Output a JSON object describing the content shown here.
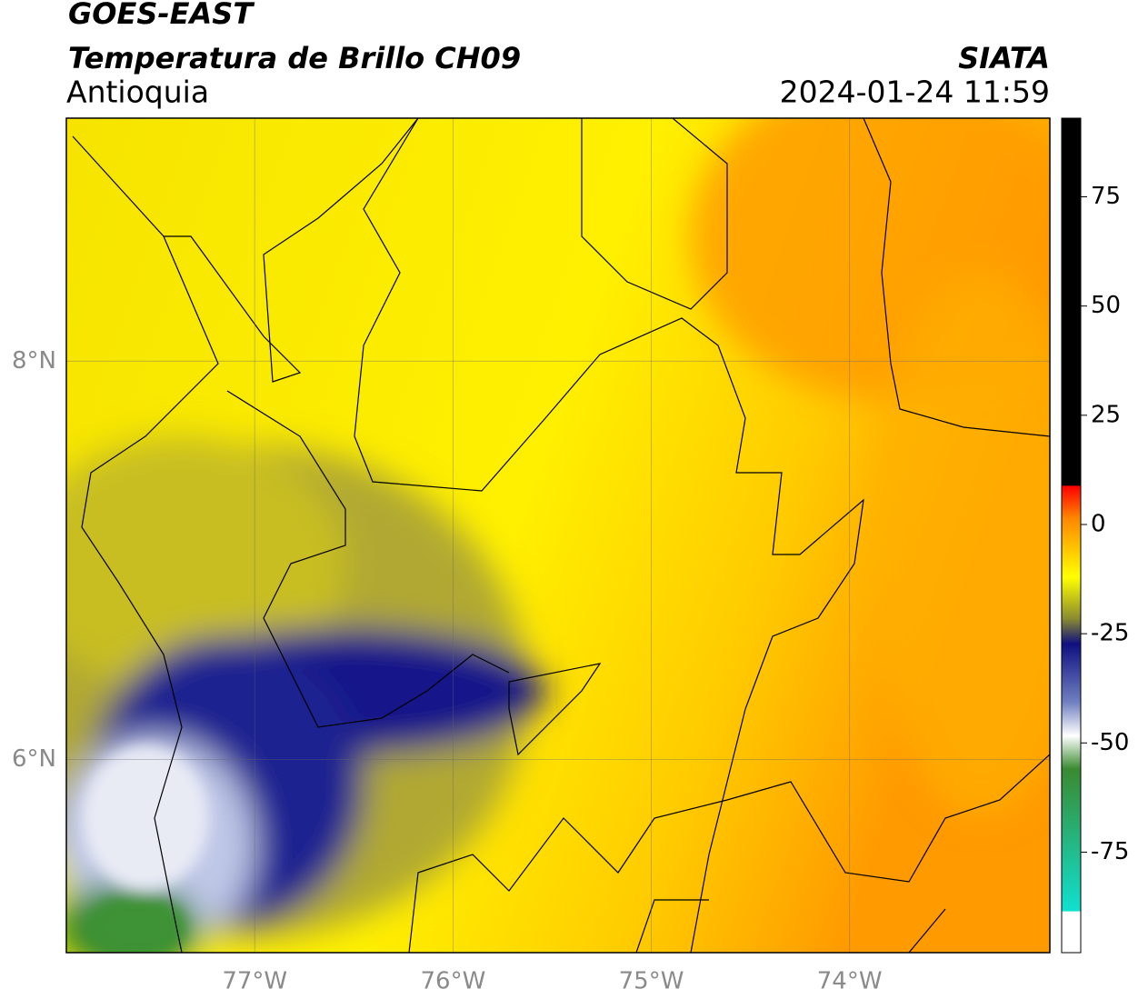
{
  "header": {
    "satellite": "GOES-EAST",
    "product": "Temperatura de Brillo CH09",
    "region": "Antioquia",
    "source": "SIATA",
    "datetime": "2024-01-24 11:59"
  },
  "map": {
    "xlim": [
      -77.95,
      -72.99
    ],
    "ylim": [
      5.03,
      9.22
    ],
    "xticks": [
      {
        "value": -77,
        "label": "77°W"
      },
      {
        "value": -76,
        "label": "76°W"
      },
      {
        "value": -75,
        "label": "75°W"
      },
      {
        "value": -74,
        "label": "74°W"
      }
    ],
    "yticks": [
      {
        "value": 8,
        "label": "8°N"
      },
      {
        "value": 6,
        "label": "6°N"
      }
    ]
  },
  "colorbar": {
    "lim": [
      -98,
      93
    ],
    "ticks": [
      75,
      50,
      25,
      0,
      -25,
      -50,
      -75
    ]
  }
}
